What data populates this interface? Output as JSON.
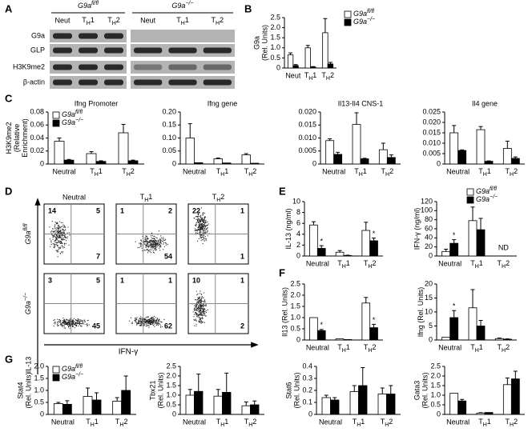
{
  "panels": [
    "A",
    "B",
    "C",
    "D",
    "E",
    "F",
    "G"
  ],
  "blots": {
    "groups": [
      "G9afl/fl",
      "G9a−/−"
    ],
    "lanes": [
      [
        "Neut",
        "TH1",
        "TH2"
      ],
      [
        "Neut",
        "TH1",
        "TH2"
      ]
    ],
    "rows": [
      "G9a",
      "GLP",
      "H3K9me2",
      "β-actin"
    ]
  },
  "flow": {
    "columns": [
      "Neutral",
      "TH1",
      "TH2"
    ],
    "rows": [
      "G9afl/fl",
      "G9a−/−"
    ],
    "quadrants": [
      [
        [
          14,
          5,
          7
        ],
        [
          1,
          2,
          54
        ],
        [
          22,
          1,
          1
        ]
      ],
      [
        [
          3,
          5,
          45
        ],
        [
          1,
          1,
          62
        ],
        [
          10,
          1,
          2
        ]
      ]
    ],
    "x_label": "IFN-γ",
    "y_label": "IL-13"
  },
  "chart_data": [
    {
      "type": "bar",
      "ylabel": [
        "G9a",
        "(Rel. Units)"
      ],
      "categories": [
        "Neut",
        "TH1",
        "TH2"
      ],
      "legend": "right",
      "series": [
        {
          "name": "G9afl/fl",
          "color": "#ffffff",
          "values": [
            0.65,
            1.0,
            1.75
          ],
          "errors": [
            0.1,
            0.12,
            0.7
          ]
        },
        {
          "name": "G9a−/−",
          "color": "#000000",
          "values": [
            0.12,
            0.05,
            0.2
          ],
          "errors": [
            0.05,
            0.02,
            0.08
          ]
        }
      ],
      "ylim": [
        0,
        2.5
      ],
      "yticks": [
        0,
        0.5,
        {
          "value": 1,
          "label": "1.0"
        },
        1.5,
        {
          "value": 2,
          "label": "2.0"
        },
        2.5
      ]
    },
    {
      "type": "bar",
      "title": "Ifng Promoter",
      "ylabel": [
        "H3K9me2",
        "(Relative",
        "Enrichment)"
      ],
      "categories": [
        "Neutral",
        "TH1",
        "TH2"
      ],
      "legend": "top-left",
      "series": [
        {
          "name": "G9afl/fl",
          "color": "#ffffff",
          "values": [
            0.035,
            0.016,
            0.048
          ],
          "errors": [
            0.005,
            0.003,
            0.013
          ]
        },
        {
          "name": "G9a−/−",
          "color": "#000000",
          "values": [
            0.006,
            0.004,
            0.005
          ],
          "errors": [
            0.001,
            0.001,
            0.001
          ]
        }
      ],
      "ylim": [
        0,
        0.08
      ],
      "yticks": [
        0,
        0.02,
        0.04,
        0.06,
        0.08
      ]
    },
    {
      "type": "bar",
      "title": "Ifng gene",
      "categories": [
        "Neutral",
        "TH1",
        "TH2"
      ],
      "series": [
        {
          "color": "#ffffff",
          "values": [
            0.1,
            0.02,
            0.035
          ],
          "errors": [
            0.055,
            0.003,
            0.005
          ]
        },
        {
          "color": "#000000",
          "values": [
            0.005,
            0.004,
            0.003
          ],
          "errors": [
            null,
            null,
            null
          ]
        }
      ],
      "ylim": [
        0,
        0.2
      ],
      "yticks": [
        0,
        0.05,
        {
          "value": 0.1,
          "label": "0.10"
        },
        0.15,
        {
          "value": 0.2,
          "label": "0.20"
        }
      ]
    },
    {
      "type": "bar",
      "title": "Il13-Il4 CNS-1",
      "categories": [
        "Neutral",
        "TH1",
        "TH2"
      ],
      "series": [
        {
          "color": "#ffffff",
          "values": [
            0.009,
            0.0152,
            0.0055
          ],
          "errors": [
            0.0007,
            0.0045,
            0.0025
          ]
        },
        {
          "color": "#000000",
          "values": [
            0.0037,
            0.002,
            0.0025
          ],
          "errors": [
            0.0008,
            0.0002,
            0.001
          ]
        }
      ],
      "ylim": [
        0,
        0.02
      ],
      "yticks": [
        0,
        0.005,
        {
          "value": 0.01,
          "label": "0.010"
        },
        0.015,
        {
          "value": 0.02,
          "label": "0.020"
        }
      ]
    },
    {
      "type": "bar",
      "title": "Il4 gene",
      "categories": [
        "Neutral",
        "TH1",
        "TH2"
      ],
      "series": [
        {
          "color": "#ffffff",
          "values": [
            0.015,
            0.0165,
            0.0075
          ],
          "errors": [
            0.0035,
            0.0015,
            0.0035
          ]
        },
        {
          "color": "#000000",
          "values": [
            0.0065,
            0.0013,
            0.0027
          ],
          "errors": [
            0.0003,
            0.0002,
            0.0007
          ]
        }
      ],
      "ylim": [
        0,
        0.025
      ],
      "yticks": [
        0,
        0.005,
        {
          "value": 0.01,
          "label": "0.010"
        },
        0.015,
        {
          "value": 0.02,
          "label": "0.020"
        },
        0.025
      ]
    },
    {
      "type": "bar",
      "ylabel": [
        "IL-13 (ng/ml)"
      ],
      "categories": [
        "Neutral",
        "TH1",
        "TH2"
      ],
      "series": [
        {
          "color": "#ffffff",
          "values": [
            5.7,
            0.7,
            4.7
          ],
          "errors": [
            0.6,
            0.3,
            1.5
          ]
        },
        {
          "color": "#000000",
          "values": [
            1.4,
            0.1,
            2.8
          ],
          "errors": [
            0.5,
            0.05,
            0.5
          ],
          "stars": [
            "*",
            null,
            "*"
          ]
        }
      ],
      "ylim": [
        0,
        10
      ],
      "yticks": [
        0,
        2,
        4,
        6,
        8,
        10
      ]
    },
    {
      "type": "bar",
      "ylabel": [
        "IFN-γ (ng/ml)"
      ],
      "categories": [
        "Neutral",
        "TH1",
        "TH2"
      ],
      "legend": "top-right",
      "note": "ND",
      "series": [
        {
          "name": "G9afl/fl",
          "color": "#ffffff",
          "values": [
            10,
            78,
            null
          ],
          "errors": [
            5,
            30,
            null
          ]
        },
        {
          "name": "G9a−/−",
          "color": "#000000",
          "values": [
            28,
            58,
            null
          ],
          "errors": [
            8,
            25,
            null
          ],
          "stars": [
            "*",
            null,
            null
          ]
        }
      ],
      "ylim": [
        0,
        120
      ],
      "yticks": [
        0,
        20,
        40,
        60,
        80,
        100,
        120
      ]
    },
    {
      "type": "bar",
      "ylabel": [
        "Il13 (Rel. Units)"
      ],
      "categories": [
        "Neutral",
        "TH1",
        "TH2"
      ],
      "series": [
        {
          "color": "#ffffff",
          "values": [
            1.0,
            0.05,
            1.65
          ],
          "errors": [
            null,
            null,
            0.25
          ]
        },
        {
          "color": "#000000",
          "values": [
            0.42,
            0.02,
            0.55
          ],
          "errors": [
            0.05,
            null,
            0.15
          ],
          "stars": [
            "*",
            null,
            "*"
          ]
        }
      ],
      "ylim": [
        0,
        2.5
      ],
      "yticks": [
        0,
        0.5,
        {
          "value": 1,
          "label": "1.0"
        },
        1.5,
        {
          "value": 2,
          "label": "2.0"
        },
        2.5
      ]
    },
    {
      "type": "bar",
      "ylabel": [
        "Ifng (Rel. Units)"
      ],
      "categories": [
        "Neutral",
        "TH1",
        "TH2"
      ],
      "series": [
        {
          "color": "#ffffff",
          "values": [
            1,
            11.5,
            0.5
          ],
          "errors": [
            null,
            6.5,
            0.2
          ]
        },
        {
          "color": "#000000",
          "values": [
            8,
            5,
            0.3
          ],
          "errors": [
            2.5,
            2,
            0.1
          ],
          "stars": [
            "*",
            null,
            null
          ]
        }
      ],
      "ylim": [
        0,
        20
      ],
      "yticks": [
        0,
        5,
        10,
        15,
        20
      ]
    },
    {
      "type": "bar",
      "ylabel": [
        "Stat4",
        "(Rel. Units)"
      ],
      "categories": [
        "Neutral",
        "TH1",
        "TH2"
      ],
      "legend": "top-left",
      "series": [
        {
          "name": "G9afl/fl",
          "color": "#ffffff",
          "values": [
            0.45,
            0.75,
            0.55
          ],
          "errors": [
            0.05,
            0.35,
            0.15
          ]
        },
        {
          "name": "G9a−/−",
          "color": "#000000",
          "values": [
            0.42,
            0.6,
            1.0
          ],
          "errors": [
            0.15,
            0.3,
            0.6
          ]
        }
      ],
      "ylim": [
        0,
        2
      ],
      "yticks": [
        0,
        0.5,
        {
          "value": 1,
          "label": "1.0"
        },
        1.5,
        {
          "value": 2,
          "label": "2.0"
        }
      ]
    },
    {
      "type": "bar",
      "ylabel": [
        "Tbx21",
        "(Rel. Units)"
      ],
      "categories": [
        "Neutral",
        "TH1",
        "TH2"
      ],
      "series": [
        {
          "color": "#ffffff",
          "values": [
            1.0,
            0.95,
            0.45
          ],
          "errors": [
            0.3,
            0.35,
            0.2
          ]
        },
        {
          "color": "#000000",
          "values": [
            1.2,
            1.15,
            0.5
          ],
          "errors": [
            0.9,
            1.0,
            0.2
          ]
        }
      ],
      "ylim": [
        0,
        2.5
      ],
      "yticks": [
        0,
        0.5,
        {
          "value": 1,
          "label": "1.0"
        },
        1.5,
        {
          "value": 2,
          "label": "2.0"
        },
        2.5
      ]
    },
    {
      "type": "bar",
      "ylabel": [
        "Stat6",
        "(Rel. Units)"
      ],
      "categories": [
        "Neutral",
        "TH1",
        "TH2"
      ],
      "series": [
        {
          "color": "#ffffff",
          "values": [
            0.14,
            0.19,
            0.17
          ],
          "errors": [
            0.02,
            0.05,
            0.05
          ]
        },
        {
          "color": "#000000",
          "values": [
            0.12,
            0.24,
            0.17
          ],
          "errors": [
            0.02,
            0.15,
            0.07
          ]
        }
      ],
      "ylim": [
        0,
        0.4
      ],
      "yticks": [
        0,
        0.1,
        0.2,
        0.3,
        0.4
      ]
    },
    {
      "type": "bar",
      "ylabel": [
        "Gata3",
        "(Rel. Units)"
      ],
      "categories": [
        "Neutral",
        "TH1",
        "TH2"
      ],
      "series": [
        {
          "color": "#ffffff",
          "values": [
            1.1,
            0.07,
            1.55
          ],
          "errors": [
            null,
            0.02,
            0.35
          ]
        },
        {
          "color": "#000000",
          "values": [
            0.7,
            0.1,
            1.85
          ],
          "errors": [
            0.08,
            null,
            0.4
          ]
        }
      ],
      "ylim": [
        0,
        2.5
      ],
      "yticks": [
        0,
        0.5,
        {
          "value": 1,
          "label": "1.0"
        },
        1.5,
        {
          "value": 2,
          "label": "2.0"
        },
        2.5
      ]
    }
  ]
}
